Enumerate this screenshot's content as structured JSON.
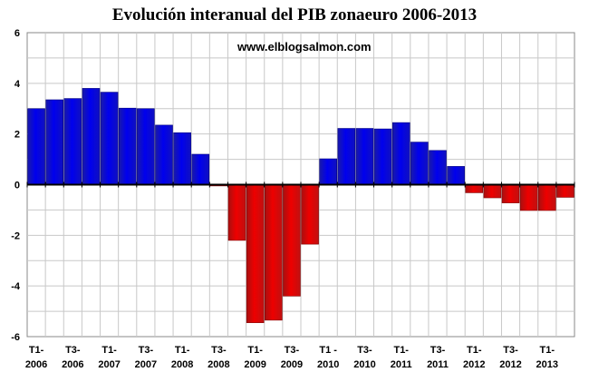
{
  "chart_data": {
    "type": "bar",
    "title": "Evolución interanual del PIB zonaeuro 2006-2013",
    "annotation": "www.elblogsalmon.com",
    "xlabel": "",
    "ylabel": "",
    "ylim": [
      -6,
      6
    ],
    "yticks": [
      6,
      4,
      2,
      0,
      -2,
      -4,
      -6
    ],
    "grid": true,
    "legend": "none",
    "colors": {
      "positive": "#0000ee",
      "negative": "#ee0000",
      "grid": "#c8c8c8",
      "zero_line": "#000000"
    },
    "categories": [
      "T1-2006",
      "T2-2006",
      "T3-2006",
      "T4-2006",
      "T1-2007",
      "T2-2007",
      "T3-2007",
      "T4-2007",
      "T1-2008",
      "T2-2008",
      "T3-2008",
      "T4-2008",
      "T1-2009",
      "T2-2009",
      "T3-2009",
      "T4-2009",
      "T1-2010",
      "T2-2010",
      "T3-2010",
      "T4-2010",
      "T1-2011",
      "T2-2011",
      "T3-2011",
      "T4-2011",
      "T1-2012",
      "T2-2012",
      "T3-2012",
      "T4-2012",
      "T1-2013",
      "T2-2013"
    ],
    "values": [
      3.0,
      3.35,
      3.4,
      3.8,
      3.65,
      3.02,
      3.0,
      2.35,
      2.05,
      1.2,
      -0.05,
      -2.2,
      -5.45,
      -5.35,
      -4.4,
      -2.35,
      1.02,
      2.22,
      2.22,
      2.2,
      2.45,
      1.68,
      1.35,
      0.72,
      -0.32,
      -0.52,
      -0.72,
      -1.02,
      -1.02,
      -0.5
    ],
    "tick_labels": [
      {
        "category": "T1-2006",
        "line1": "T1-",
        "line2": "2006"
      },
      {
        "category": "T3-2006",
        "line1": "T3-",
        "line2": "2006"
      },
      {
        "category": "T1-2007",
        "line1": "T1-",
        "line2": "2007"
      },
      {
        "category": "T3-2007",
        "line1": "T3-",
        "line2": "2007"
      },
      {
        "category": "T1-2008",
        "line1": "T1-",
        "line2": "2008"
      },
      {
        "category": "T3-2008",
        "line1": "T3-",
        "line2": "2008"
      },
      {
        "category": "T1-2009",
        "line1": "T1-",
        "line2": "2009"
      },
      {
        "category": "T3-2009",
        "line1": "T3-",
        "line2": "2009"
      },
      {
        "category": "T1-2010",
        "line1": "T1 -",
        "line2": "2010"
      },
      {
        "category": "T3-2010",
        "line1": "T3-",
        "line2": "2010"
      },
      {
        "category": "T1-2011",
        "line1": "T1-",
        "line2": "2011"
      },
      {
        "category": "T3-2011",
        "line1": "T3-",
        "line2": "2011"
      },
      {
        "category": "T1-2012",
        "line1": "T1-",
        "line2": "2012"
      },
      {
        "category": "T3-2012",
        "line1": "T3-",
        "line2": "2012"
      },
      {
        "category": "T1-2013",
        "line1": "T1-",
        "line2": "2013"
      }
    ]
  }
}
